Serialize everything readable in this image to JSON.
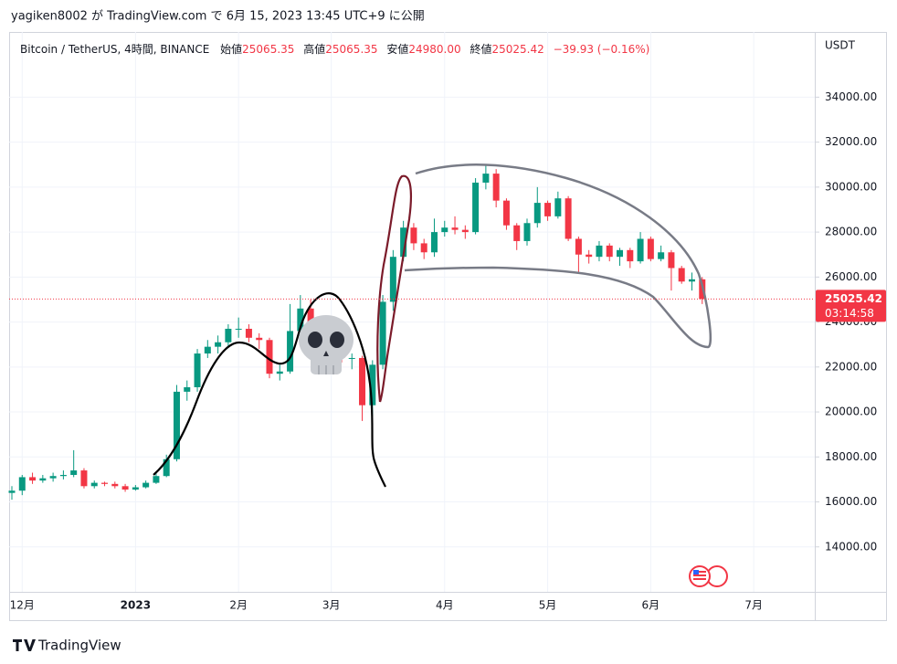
{
  "header": {
    "text": "yagiken8002 が TradingView.com で 6月 15, 2023 13:45 UTC+9 に公開"
  },
  "footer": {
    "brand": "TradingView"
  },
  "chart_data": {
    "type": "candlestick",
    "symbol_line": "Bitcoin / TetherUS, 4時間, BINANCE",
    "ohlc_legend": [
      {
        "label": "始値",
        "value": "25065.35"
      },
      {
        "label": "高値",
        "value": "25065.35"
      },
      {
        "label": "安値",
        "value": "24980.00"
      },
      {
        "label": "終値",
        "value": "25025.42"
      }
    ],
    "change": "−39.93 (−0.16%)",
    "currency": "USDT",
    "up_color": "#089981",
    "down_color": "#f23645",
    "grid": true,
    "categories": [
      null,
      "12月",
      null,
      null,
      null,
      null,
      null,
      null,
      null,
      null,
      null,
      null,
      "2023",
      null,
      null,
      null,
      null,
      null,
      null,
      null,
      null,
      null,
      "2月",
      null,
      null,
      null,
      null,
      null,
      null,
      null,
      null,
      "3月",
      null,
      null,
      null,
      null,
      null,
      null,
      null,
      null,
      null,
      null,
      "4月",
      null,
      null,
      null,
      null,
      null,
      null,
      null,
      null,
      null,
      "5月",
      null,
      null,
      null,
      null,
      null,
      null,
      null,
      null,
      null,
      "6月",
      null,
      null,
      null,
      null,
      null,
      null,
      null,
      null,
      null,
      "7月",
      null,
      null,
      null,
      null,
      null
    ],
    "open": [
      16400,
      16500,
      17100,
      16950,
      17050,
      17150,
      17200,
      17400,
      16700,
      16850,
      16800,
      16700,
      16550,
      16650,
      16850,
      17150,
      17900,
      20900,
      21100,
      22600,
      22900,
      23100,
      23700,
      23700,
      23300,
      23200,
      21700,
      21800,
      23600,
      24600,
      23900,
      23200,
      23400,
      22400,
      22400,
      20300,
      22100,
      24900,
      26900,
      28200,
      27500,
      27100,
      28000,
      28200,
      28100,
      28000,
      30200,
      30600,
      29400,
      28300,
      27600,
      28400,
      29300,
      28700,
      29500,
      27700,
      27000,
      26900,
      27400,
      26900,
      27200,
      26700,
      27700,
      26800,
      27100,
      26400,
      25800,
      25900,
      null,
      null,
      null,
      null,
      null,
      null,
      null,
      null,
      null,
      null
    ],
    "high": [
      16700,
      17200,
      17300,
      17200,
      17300,
      17400,
      18300,
      17500,
      16950,
      16900,
      16900,
      16800,
      16750,
      16950,
      17300,
      18100,
      21200,
      21400,
      22800,
      23200,
      23400,
      23900,
      24200,
      23900,
      23500,
      23300,
      22100,
      24800,
      25200,
      25000,
      24100,
      23600,
      23500,
      22600,
      22500,
      22300,
      25200,
      27200,
      28500,
      28400,
      27700,
      28600,
      28500,
      28700,
      28300,
      30400,
      31000,
      30800,
      29500,
      28400,
      28600,
      30000,
      29400,
      29800,
      29600,
      27800,
      27200,
      27600,
      27500,
      27300,
      27300,
      28000,
      27800,
      27400,
      27200,
      26500,
      26200,
      26000,
      null,
      null,
      null,
      null,
      null,
      null,
      null,
      null,
      null,
      null
    ],
    "low": [
      16100,
      16300,
      16800,
      16850,
      16900,
      17000,
      17100,
      16600,
      16600,
      16700,
      16600,
      16450,
      16500,
      16600,
      16800,
      17100,
      17800,
      20500,
      20900,
      22400,
      22600,
      22900,
      23300,
      23100,
      22800,
      21500,
      21400,
      21700,
      23500,
      23700,
      22900,
      23000,
      22200,
      21900,
      19600,
      19800,
      21900,
      24500,
      26700,
      27200,
      26800,
      26900,
      27800,
      27900,
      27700,
      27900,
      29900,
      29100,
      28100,
      27200,
      27400,
      28200,
      28500,
      28600,
      27600,
      26200,
      26600,
      26700,
      26700,
      26500,
      26400,
      26600,
      26700,
      26700,
      25400,
      25700,
      25400,
      24800,
      null,
      null,
      null,
      null,
      null,
      null,
      null,
      null,
      null,
      null
    ],
    "close": [
      16500,
      17100,
      16950,
      17050,
      17150,
      17200,
      17400,
      16700,
      16850,
      16800,
      16700,
      16550,
      16650,
      16850,
      17150,
      17900,
      20900,
      21100,
      22600,
      22900,
      23100,
      23700,
      23700,
      23300,
      23200,
      21700,
      21800,
      23600,
      24600,
      23900,
      23200,
      23400,
      22400,
      22400,
      20300,
      22100,
      24900,
      26900,
      28200,
      27500,
      27100,
      28000,
      28200,
      28100,
      28000,
      30200,
      30600,
      29400,
      28300,
      27600,
      28400,
      29300,
      28700,
      29500,
      27700,
      27000,
      26900,
      27400,
      26900,
      27200,
      26700,
      27700,
      26800,
      27100,
      26400,
      25800,
      25900,
      25025.42,
      null,
      null,
      null,
      null,
      null,
      null,
      null,
      null,
      null,
      null
    ],
    "ylim": [
      12000,
      36900
    ],
    "yticks": [
      {
        "value": 14000,
        "label": "14000.00"
      },
      {
        "value": 16000,
        "label": "16000.00"
      },
      {
        "value": 18000,
        "label": "18000.00"
      },
      {
        "value": 20000,
        "label": "20000.00"
      },
      {
        "value": 22000,
        "label": "22000.00"
      },
      {
        "value": 24000,
        "label": "24000.00"
      },
      {
        "value": 26000,
        "label": "26000.00"
      },
      {
        "value": 28000,
        "label": "28000.00"
      },
      {
        "value": 30000,
        "label": "30000.00"
      },
      {
        "value": 32000,
        "label": "32000.00"
      },
      {
        "value": 34000,
        "label": "34000.00"
      }
    ],
    "last_price": 25025.42,
    "countdown": "03:14:58"
  }
}
